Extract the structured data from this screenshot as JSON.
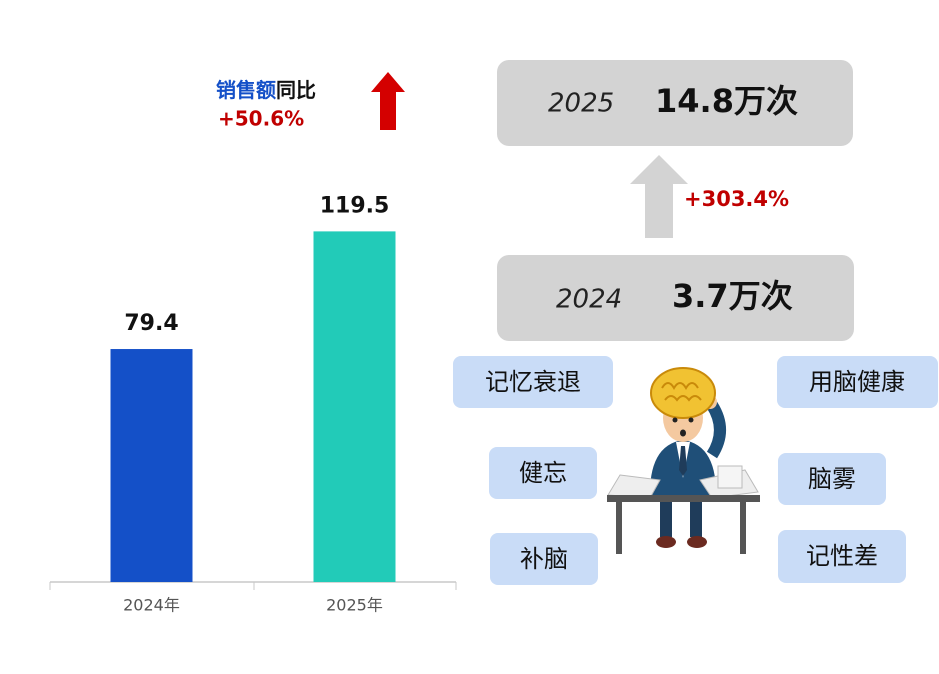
{
  "chart_data": {
    "type": "bar",
    "categories": [
      "2024年",
      "2025年"
    ],
    "values": [
      79.4,
      119.5
    ],
    "colors": [
      "#1450c8",
      "#22cbb8"
    ],
    "annotation": {
      "label_blue": "销售额",
      "label_black": "同比",
      "change": "+50.6%"
    }
  },
  "search_volume": {
    "after": {
      "year": "2025",
      "count": "14.8万次"
    },
    "before": {
      "year": "2024",
      "count": "3.7万次"
    },
    "change": "+303.4%"
  },
  "tags": [
    "记忆衰退",
    "用脑健康",
    "健忘",
    "脑雾",
    "补脑",
    "记性差"
  ]
}
